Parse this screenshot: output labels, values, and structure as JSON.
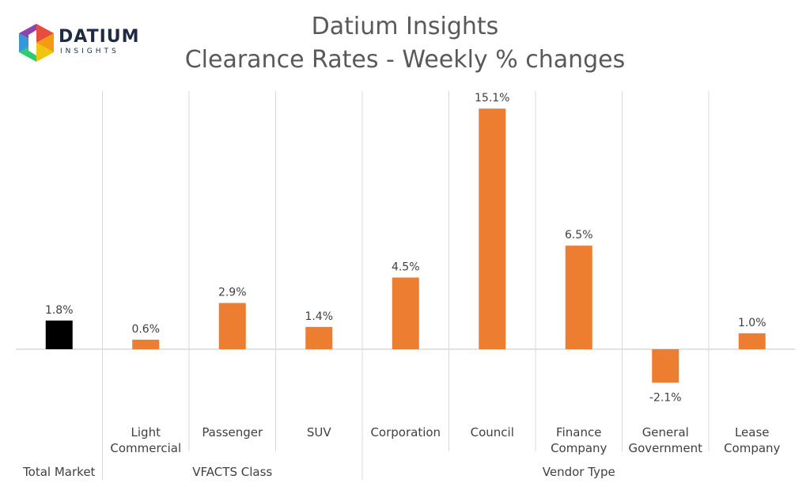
{
  "brand": {
    "name": "DATIUM",
    "sub": "INSIGHTS",
    "colors": [
      "#e84c3d",
      "#f39c12",
      "#2ecc71",
      "#3498db",
      "#8e44ad",
      "#1abc9c"
    ]
  },
  "chart_data": {
    "type": "bar",
    "title": "Datium Insights",
    "subtitle": "Clearance Rates - Weekly % changes",
    "categories": [
      [
        "Total Market"
      ],
      [
        "Light",
        "Commercial"
      ],
      [
        "Passenger"
      ],
      [
        "SUV"
      ],
      [
        "Corporation"
      ],
      [
        "Council"
      ],
      [
        "Finance",
        "Company"
      ],
      [
        "General",
        "Government"
      ],
      [
        "Lease",
        "Company"
      ]
    ],
    "groups": [
      {
        "label": "",
        "start": 0,
        "end": 0
      },
      {
        "label": "VFACTS Class",
        "start": 1,
        "end": 3
      },
      {
        "label": "Vendor Type",
        "start": 4,
        "end": 8
      }
    ],
    "values": [
      1.8,
      0.6,
      2.9,
      1.4,
      4.5,
      15.1,
      6.5,
      -2.1,
      1.0
    ],
    "data_labels": [
      "1.8%",
      "0.6%",
      "2.9%",
      "1.4%",
      "4.5%",
      "15.1%",
      "6.5%",
      "-2.1%",
      "1.0%"
    ],
    "colors": [
      "#000000",
      "#ed7d31",
      "#ed7d31",
      "#ed7d31",
      "#ed7d31",
      "#ed7d31",
      "#ed7d31",
      "#ed7d31",
      "#ed7d31"
    ],
    "ylim": [
      -3.6,
      16.2
    ],
    "grid": false,
    "legend": "none"
  }
}
